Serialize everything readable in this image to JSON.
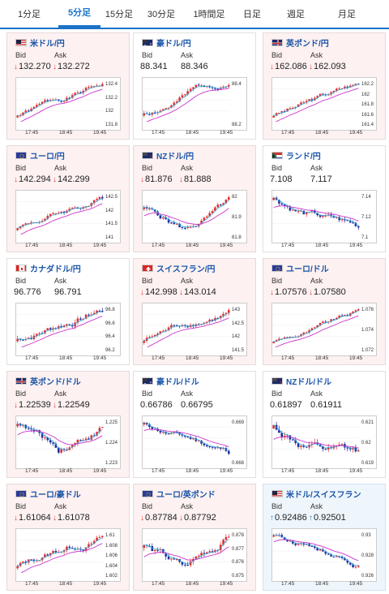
{
  "tabs": [
    "1分足",
    "5分足",
    "15分足",
    "30分足",
    "1時間足",
    "日足",
    "週足",
    "月足"
  ],
  "active_tab": 1,
  "bid_label": "Bid",
  "ask_label": "Ask",
  "x_ticks": [
    "17:45",
    "18:45",
    "19:45"
  ],
  "cards": [
    {
      "title": "米ドル/円",
      "flag": "us",
      "bid": "132.270",
      "ask": "132.272",
      "dir": "down",
      "bg": "down",
      "y_ticks": [
        "132.4",
        "132.2",
        "132",
        "131.8"
      ],
      "trend": "up",
      "seed": 1
    },
    {
      "title": "豪ドル/円",
      "flag": "au",
      "bid": "88.341",
      "ask": "88.346",
      "dir": "none",
      "bg": "neutral",
      "y_ticks": [
        "88.4",
        "88.2"
      ],
      "trend": "up",
      "seed": 2
    },
    {
      "title": "英ポンド/円",
      "flag": "gb",
      "bid": "162.086",
      "ask": "162.093",
      "dir": "down",
      "bg": "down",
      "y_ticks": [
        "162.2",
        "162",
        "161.8",
        "161.6",
        "161.4"
      ],
      "trend": "up",
      "seed": 3
    },
    {
      "title": "ユーロ/円",
      "flag": "eu",
      "bid": "142.294",
      "ask": "142.299",
      "dir": "down",
      "bg": "down",
      "y_ticks": [
        "142.5",
        "142",
        "141.5",
        "141"
      ],
      "trend": "up",
      "seed": 4
    },
    {
      "title": "NZドル/円",
      "flag": "nz",
      "bid": "81.876",
      "ask": "81.888",
      "dir": "down",
      "bg": "down",
      "y_ticks": [
        "82",
        "81.9",
        "81.8"
      ],
      "trend": "v",
      "seed": 5
    },
    {
      "title": "ランド/円",
      "flag": "za",
      "bid": "7.108",
      "ask": "7.117",
      "dir": "none",
      "bg": "neutral",
      "y_ticks": [
        "7.14",
        "7.12",
        "7.1"
      ],
      "trend": "down",
      "seed": 6
    },
    {
      "title": "カナダドル/円",
      "flag": "ca",
      "bid": "96.776",
      "ask": "96.791",
      "dir": "none",
      "bg": "neutral",
      "y_ticks": [
        "96.8",
        "96.6",
        "96.4",
        "96.2"
      ],
      "trend": "up",
      "seed": 7
    },
    {
      "title": "スイスフラン/円",
      "flag": "ch",
      "bid": "142.998",
      "ask": "143.014",
      "dir": "down",
      "bg": "down",
      "y_ticks": [
        "143",
        "142.5",
        "142",
        "141.5"
      ],
      "trend": "up",
      "seed": 8
    },
    {
      "title": "ユーロ/ドル",
      "flag": "eu",
      "bid": "1.07576",
      "ask": "1.07580",
      "dir": "down",
      "bg": "down",
      "y_ticks": [
        "1.076",
        "1.074",
        "1.072"
      ],
      "trend": "up",
      "seed": 9
    },
    {
      "title": "英ポンド/ドル",
      "flag": "gb",
      "bid": "1.22539",
      "ask": "1.22549",
      "dir": "down",
      "bg": "down",
      "y_ticks": [
        "1.225",
        "1.224",
        "1.223"
      ],
      "trend": "v",
      "seed": 10
    },
    {
      "title": "豪ドル/ドル",
      "flag": "au",
      "bid": "0.66786",
      "ask": "0.66795",
      "dir": "none",
      "bg": "neutral",
      "y_ticks": [
        "0.669",
        "0.668"
      ],
      "trend": "down",
      "seed": 11
    },
    {
      "title": "NZドル/ドル",
      "flag": "nz",
      "bid": "0.61897",
      "ask": "0.61911",
      "dir": "none",
      "bg": "neutral",
      "y_ticks": [
        "0.621",
        "0.62",
        "0.619"
      ],
      "trend": "down",
      "seed": 12
    },
    {
      "title": "ユーロ/豪ドル",
      "flag": "eu",
      "bid": "1.61064",
      "ask": "1.61078",
      "dir": "down",
      "bg": "down",
      "y_ticks": [
        "1.61",
        "1.608",
        "1.606",
        "1.604",
        "1.602"
      ],
      "trend": "up",
      "seed": 13
    },
    {
      "title": "ユーロ/英ポンド",
      "flag": "eu",
      "bid": "0.87784",
      "ask": "0.87792",
      "dir": "down",
      "bg": "down",
      "y_ticks": [
        "0.878",
        "0.877",
        "0.876",
        "0.875"
      ],
      "trend": "v",
      "seed": 14
    },
    {
      "title": "米ドル/スイスフラン",
      "flag": "us",
      "bid": "0.92486",
      "ask": "0.92501",
      "dir": "up",
      "bg": "up",
      "y_ticks": [
        "0.93",
        "0.928",
        "0.926"
      ],
      "trend": "down",
      "seed": 15
    }
  ],
  "colors": {
    "accent": "#1a73c8",
    "candle_up": "#e03030",
    "candle_down": "#1f2f9a",
    "ma": "#cc33cc",
    "ma2": "#33aadd"
  }
}
